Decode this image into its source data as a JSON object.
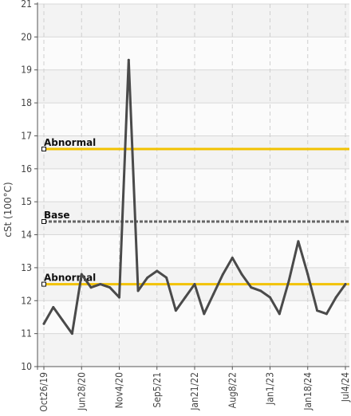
{
  "chart_data": {
    "type": "line",
    "xlabel": "",
    "ylabel": "cSt (100°C)",
    "ylim": [
      10,
      21
    ],
    "yticks": [
      10,
      11,
      12,
      13,
      14,
      15,
      16,
      17,
      18,
      19,
      20,
      21
    ],
    "xticks": [
      "Oct26/19",
      "Jun28/20",
      "Nov4/20",
      "Sep5/21",
      "Jan21/22",
      "Aug8/22",
      "Jan1/23",
      "Jan18/24",
      "Jul4/24"
    ],
    "grid": true,
    "series": [
      {
        "values": [
          11.3,
          11.8,
          11.4,
          11.0,
          12.8,
          12.4,
          12.5,
          12.4,
          12.1,
          19.3,
          12.3,
          12.7,
          12.9,
          12.7,
          11.7,
          12.1,
          12.5,
          11.6,
          12.2,
          12.8,
          13.3,
          12.8,
          12.4,
          12.3,
          12.1,
          11.6,
          12.6,
          13.8,
          12.8,
          11.7,
          11.6,
          12.1,
          12.5
        ],
        "color": "#4a4a4a"
      }
    ],
    "reference_lines": [
      {
        "label": "Abnormal",
        "value": 16.6,
        "color": "#f2c200",
        "style": "solid"
      },
      {
        "label": "Base",
        "value": 14.4,
        "color": "#666666",
        "style": "dashed"
      },
      {
        "label": "Abnormal",
        "value": 12.5,
        "color": "#f2c200",
        "style": "solid"
      }
    ]
  }
}
